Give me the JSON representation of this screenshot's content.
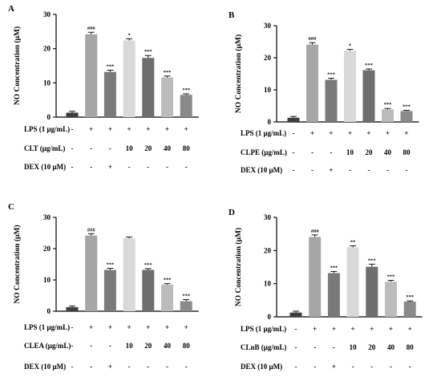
{
  "chart_data": [
    {
      "type": "bar",
      "panel": "A",
      "ylabel": "NO Concentration  (μM)",
      "ylim": [
        0,
        30
      ],
      "yticks": [
        0,
        10,
        20,
        30
      ],
      "extract_label": "CLT (μg/mL)",
      "lps_label": "LPS (1 μg/mL)",
      "dex_label": "DEX (10 μM)",
      "lps_row": [
        "-",
        "+",
        "+",
        "+",
        "+",
        "+",
        "+"
      ],
      "extract_row": [
        "-",
        "-",
        "-",
        "10",
        "20",
        "40",
        "80"
      ],
      "dex_row": [
        "-",
        "-",
        "+",
        "-",
        "-",
        "-",
        "-"
      ],
      "values": [
        1.3,
        24.2,
        13.2,
        22.4,
        17.3,
        11.6,
        6.5
      ],
      "errors": [
        0.4,
        0.6,
        0.5,
        0.5,
        0.7,
        0.4,
        0.3
      ],
      "significance": [
        "",
        "###",
        "***",
        "*",
        "***",
        "***",
        "***"
      ],
      "colors": [
        "#3d3d3d",
        "#a6a6a6",
        "#7a7a7a",
        "#d9d9d9",
        "#6e6e6e",
        "#bcbcbc",
        "#8a8a8a"
      ]
    },
    {
      "type": "bar",
      "panel": "B",
      "ylabel": "NO Concentration  (μM)",
      "ylim": [
        0,
        30
      ],
      "yticks": [
        0,
        10,
        20,
        30
      ],
      "extract_label": "CLPE (μg/mL)",
      "lps_label": "LPS (1 μg/mL)",
      "dex_label": "DEX (10 μM)",
      "lps_row": [
        "-",
        "+",
        "+",
        "+",
        "+",
        "+",
        "+"
      ],
      "extract_row": [
        "-",
        "-",
        "-",
        "10",
        "20",
        "40",
        "80"
      ],
      "dex_row": [
        "-",
        "-",
        "+",
        "-",
        "-",
        "-",
        "-"
      ],
      "values": [
        1.3,
        24.1,
        13.1,
        22.2,
        16.1,
        3.9,
        3.4
      ],
      "errors": [
        0.4,
        0.6,
        0.5,
        0.4,
        0.4,
        0.3,
        0.2
      ],
      "significance": [
        "",
        "###",
        "***",
        "*",
        "***",
        "***",
        "***"
      ],
      "colors": [
        "#3d3d3d",
        "#a6a6a6",
        "#7a7a7a",
        "#d9d9d9",
        "#6e6e6e",
        "#bcbcbc",
        "#8a8a8a"
      ]
    },
    {
      "type": "bar",
      "panel": "C",
      "ylabel": "NO Concentration  (μM)",
      "ylim": [
        0,
        30
      ],
      "yticks": [
        0,
        10,
        20,
        30
      ],
      "extract_label": "CLEA (μg/mL)",
      "lps_label": "LPS (1 μg/mL)",
      "dex_label": "DEX (10 μM)",
      "lps_row": [
        "-",
        "+",
        "+",
        "+",
        "+",
        "+",
        "+"
      ],
      "extract_row": [
        "-",
        "-",
        "-",
        "10",
        "20",
        "40",
        "80"
      ],
      "dex_row": [
        "-",
        "-",
        "+",
        "-",
        "-",
        "-",
        "-"
      ],
      "values": [
        1.3,
        24.2,
        13.2,
        23.3,
        13.2,
        8.5,
        3.2
      ],
      "errors": [
        0.4,
        0.6,
        0.5,
        0.4,
        0.4,
        0.3,
        0.5
      ],
      "significance": [
        "",
        "###",
        "***",
        "",
        "***",
        "***",
        "***"
      ],
      "colors": [
        "#3d3d3d",
        "#a6a6a6",
        "#7a7a7a",
        "#d9d9d9",
        "#6e6e6e",
        "#bcbcbc",
        "#8a8a8a"
      ]
    },
    {
      "type": "bar",
      "panel": "D",
      "ylabel": "NO Concentration  (μM)",
      "ylim": [
        0,
        30
      ],
      "yticks": [
        0,
        10,
        20,
        30
      ],
      "extract_label": "CLnB (μg/mL)",
      "lps_label": "LPS (1 μg/mL)",
      "dex_label": "DEX (10 μM)",
      "lps_row": [
        "-",
        "+",
        "+",
        "+",
        "+",
        "+",
        "+"
      ],
      "extract_row": [
        "-",
        "-",
        "-",
        "10",
        "20",
        "40",
        "80"
      ],
      "dex_row": [
        "-",
        "-",
        "+",
        "-",
        "-",
        "-",
        "-"
      ],
      "values": [
        1.3,
        24.1,
        13.2,
        21.0,
        15.1,
        10.6,
        4.6
      ],
      "errors": [
        0.4,
        0.6,
        0.5,
        0.4,
        0.8,
        0.4,
        0.2
      ],
      "significance": [
        "",
        "###",
        "***",
        "**",
        "***",
        "***",
        "***"
      ],
      "colors": [
        "#3d3d3d",
        "#a6a6a6",
        "#7a7a7a",
        "#d9d9d9",
        "#6e6e6e",
        "#bcbcbc",
        "#8a8a8a"
      ]
    }
  ]
}
